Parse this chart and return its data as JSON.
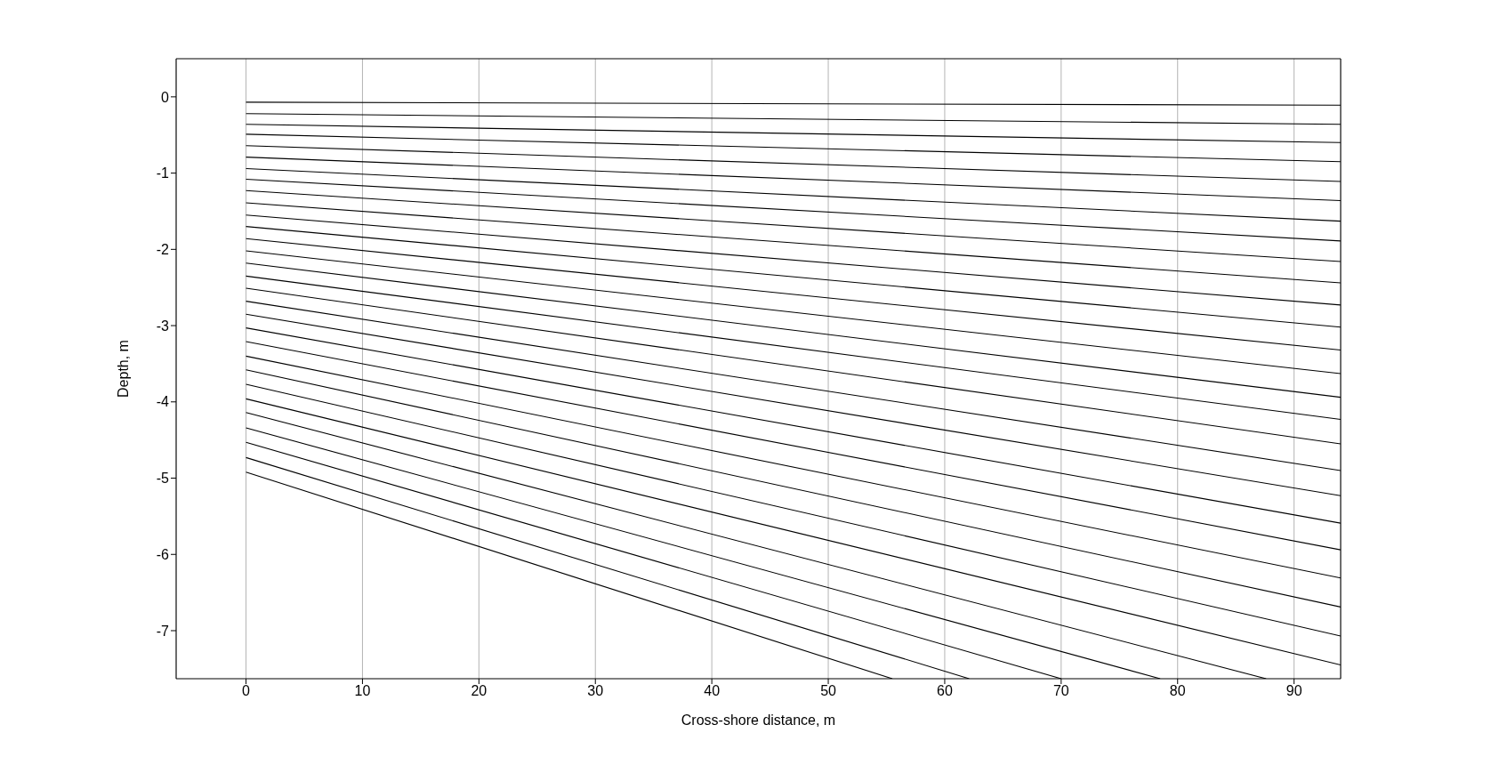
{
  "chart_data": {
    "type": "line",
    "xlabel": "Cross-shore distance, m",
    "ylabel": "Depth, m",
    "xlim": [
      -6,
      94
    ],
    "ylim": [
      -7.63,
      0.5
    ],
    "xticks": [
      0,
      10,
      20,
      30,
      40,
      50,
      60,
      70,
      80,
      90
    ],
    "yticks": [
      0,
      -1,
      -2,
      -3,
      -4,
      -5,
      -6,
      -7
    ],
    "marker": "none",
    "line_style": "solid",
    "grid": "x",
    "series": [
      {
        "color": "#000000",
        "x": [
          0,
          94
        ],
        "values": [
          -0.07,
          -0.11
        ]
      },
      {
        "color": "#000000",
        "x": [
          0,
          94
        ],
        "values": [
          -0.22,
          -0.36
        ]
      },
      {
        "color": "#000000",
        "x": [
          0,
          94
        ],
        "values": [
          -0.36,
          -0.6
        ]
      },
      {
        "color": "#000000",
        "x": [
          0,
          94
        ],
        "values": [
          -0.49,
          -0.85
        ]
      },
      {
        "color": "#000000",
        "x": [
          0,
          94
        ],
        "values": [
          -0.64,
          -1.11
        ]
      },
      {
        "color": "#000000",
        "x": [
          0,
          94
        ],
        "values": [
          -0.79,
          -1.36
        ]
      },
      {
        "color": "#000000",
        "x": [
          0,
          94
        ],
        "values": [
          -0.94,
          -1.63
        ]
      },
      {
        "color": "#000000",
        "x": [
          0,
          94
        ],
        "values": [
          -1.08,
          -1.89
        ]
      },
      {
        "color": "#000000",
        "x": [
          0,
          94
        ],
        "values": [
          -1.23,
          -2.16
        ]
      },
      {
        "color": "#000000",
        "x": [
          0,
          94
        ],
        "values": [
          -1.39,
          -2.44
        ]
      },
      {
        "color": "#000000",
        "x": [
          0,
          94
        ],
        "values": [
          -1.55,
          -2.73
        ]
      },
      {
        "color": "#000000",
        "x": [
          0,
          94
        ],
        "values": [
          -1.7,
          -3.02
        ]
      },
      {
        "color": "#000000",
        "x": [
          0,
          94
        ],
        "values": [
          -1.86,
          -3.32
        ]
      },
      {
        "color": "#000000",
        "x": [
          0,
          94
        ],
        "values": [
          -2.02,
          -3.63
        ]
      },
      {
        "color": "#000000",
        "x": [
          0,
          94
        ],
        "values": [
          -2.18,
          -3.94
        ]
      },
      {
        "color": "#000000",
        "x": [
          0,
          94
        ],
        "values": [
          -2.35,
          -4.23
        ]
      },
      {
        "color": "#000000",
        "x": [
          0,
          94
        ],
        "values": [
          -2.51,
          -4.55
        ]
      },
      {
        "color": "#000000",
        "x": [
          0,
          94
        ],
        "values": [
          -2.68,
          -4.9
        ]
      },
      {
        "color": "#000000",
        "x": [
          0,
          94
        ],
        "values": [
          -2.85,
          -5.23
        ]
      },
      {
        "color": "#000000",
        "x": [
          0,
          94
        ],
        "values": [
          -3.03,
          -5.59
        ]
      },
      {
        "color": "#000000",
        "x": [
          0,
          94
        ],
        "values": [
          -3.21,
          -5.94
        ]
      },
      {
        "color": "#000000",
        "x": [
          0,
          94
        ],
        "values": [
          -3.4,
          -6.31
        ]
      },
      {
        "color": "#000000",
        "x": [
          0,
          94
        ],
        "values": [
          -3.58,
          -6.69
        ]
      },
      {
        "color": "#000000",
        "x": [
          0,
          94
        ],
        "values": [
          -3.77,
          -7.07
        ]
      },
      {
        "color": "#000000",
        "x": [
          0,
          94
        ],
        "values": [
          -3.96,
          -7.45
        ]
      },
      {
        "color": "#000000",
        "x": [
          0,
          87.6
        ],
        "values": [
          -4.14,
          -7.63
        ]
      },
      {
        "color": "#000000",
        "x": [
          0,
          78.5
        ],
        "values": [
          -4.34,
          -7.63
        ]
      },
      {
        "color": "#000000",
        "x": [
          0,
          70
        ],
        "values": [
          -4.53,
          -7.63
        ]
      },
      {
        "color": "#000000",
        "x": [
          0,
          62.1
        ],
        "values": [
          -4.73,
          -7.63
        ]
      },
      {
        "color": "#000000",
        "x": [
          0,
          55.5
        ],
        "values": [
          -4.92,
          -7.63
        ]
      }
    ]
  }
}
